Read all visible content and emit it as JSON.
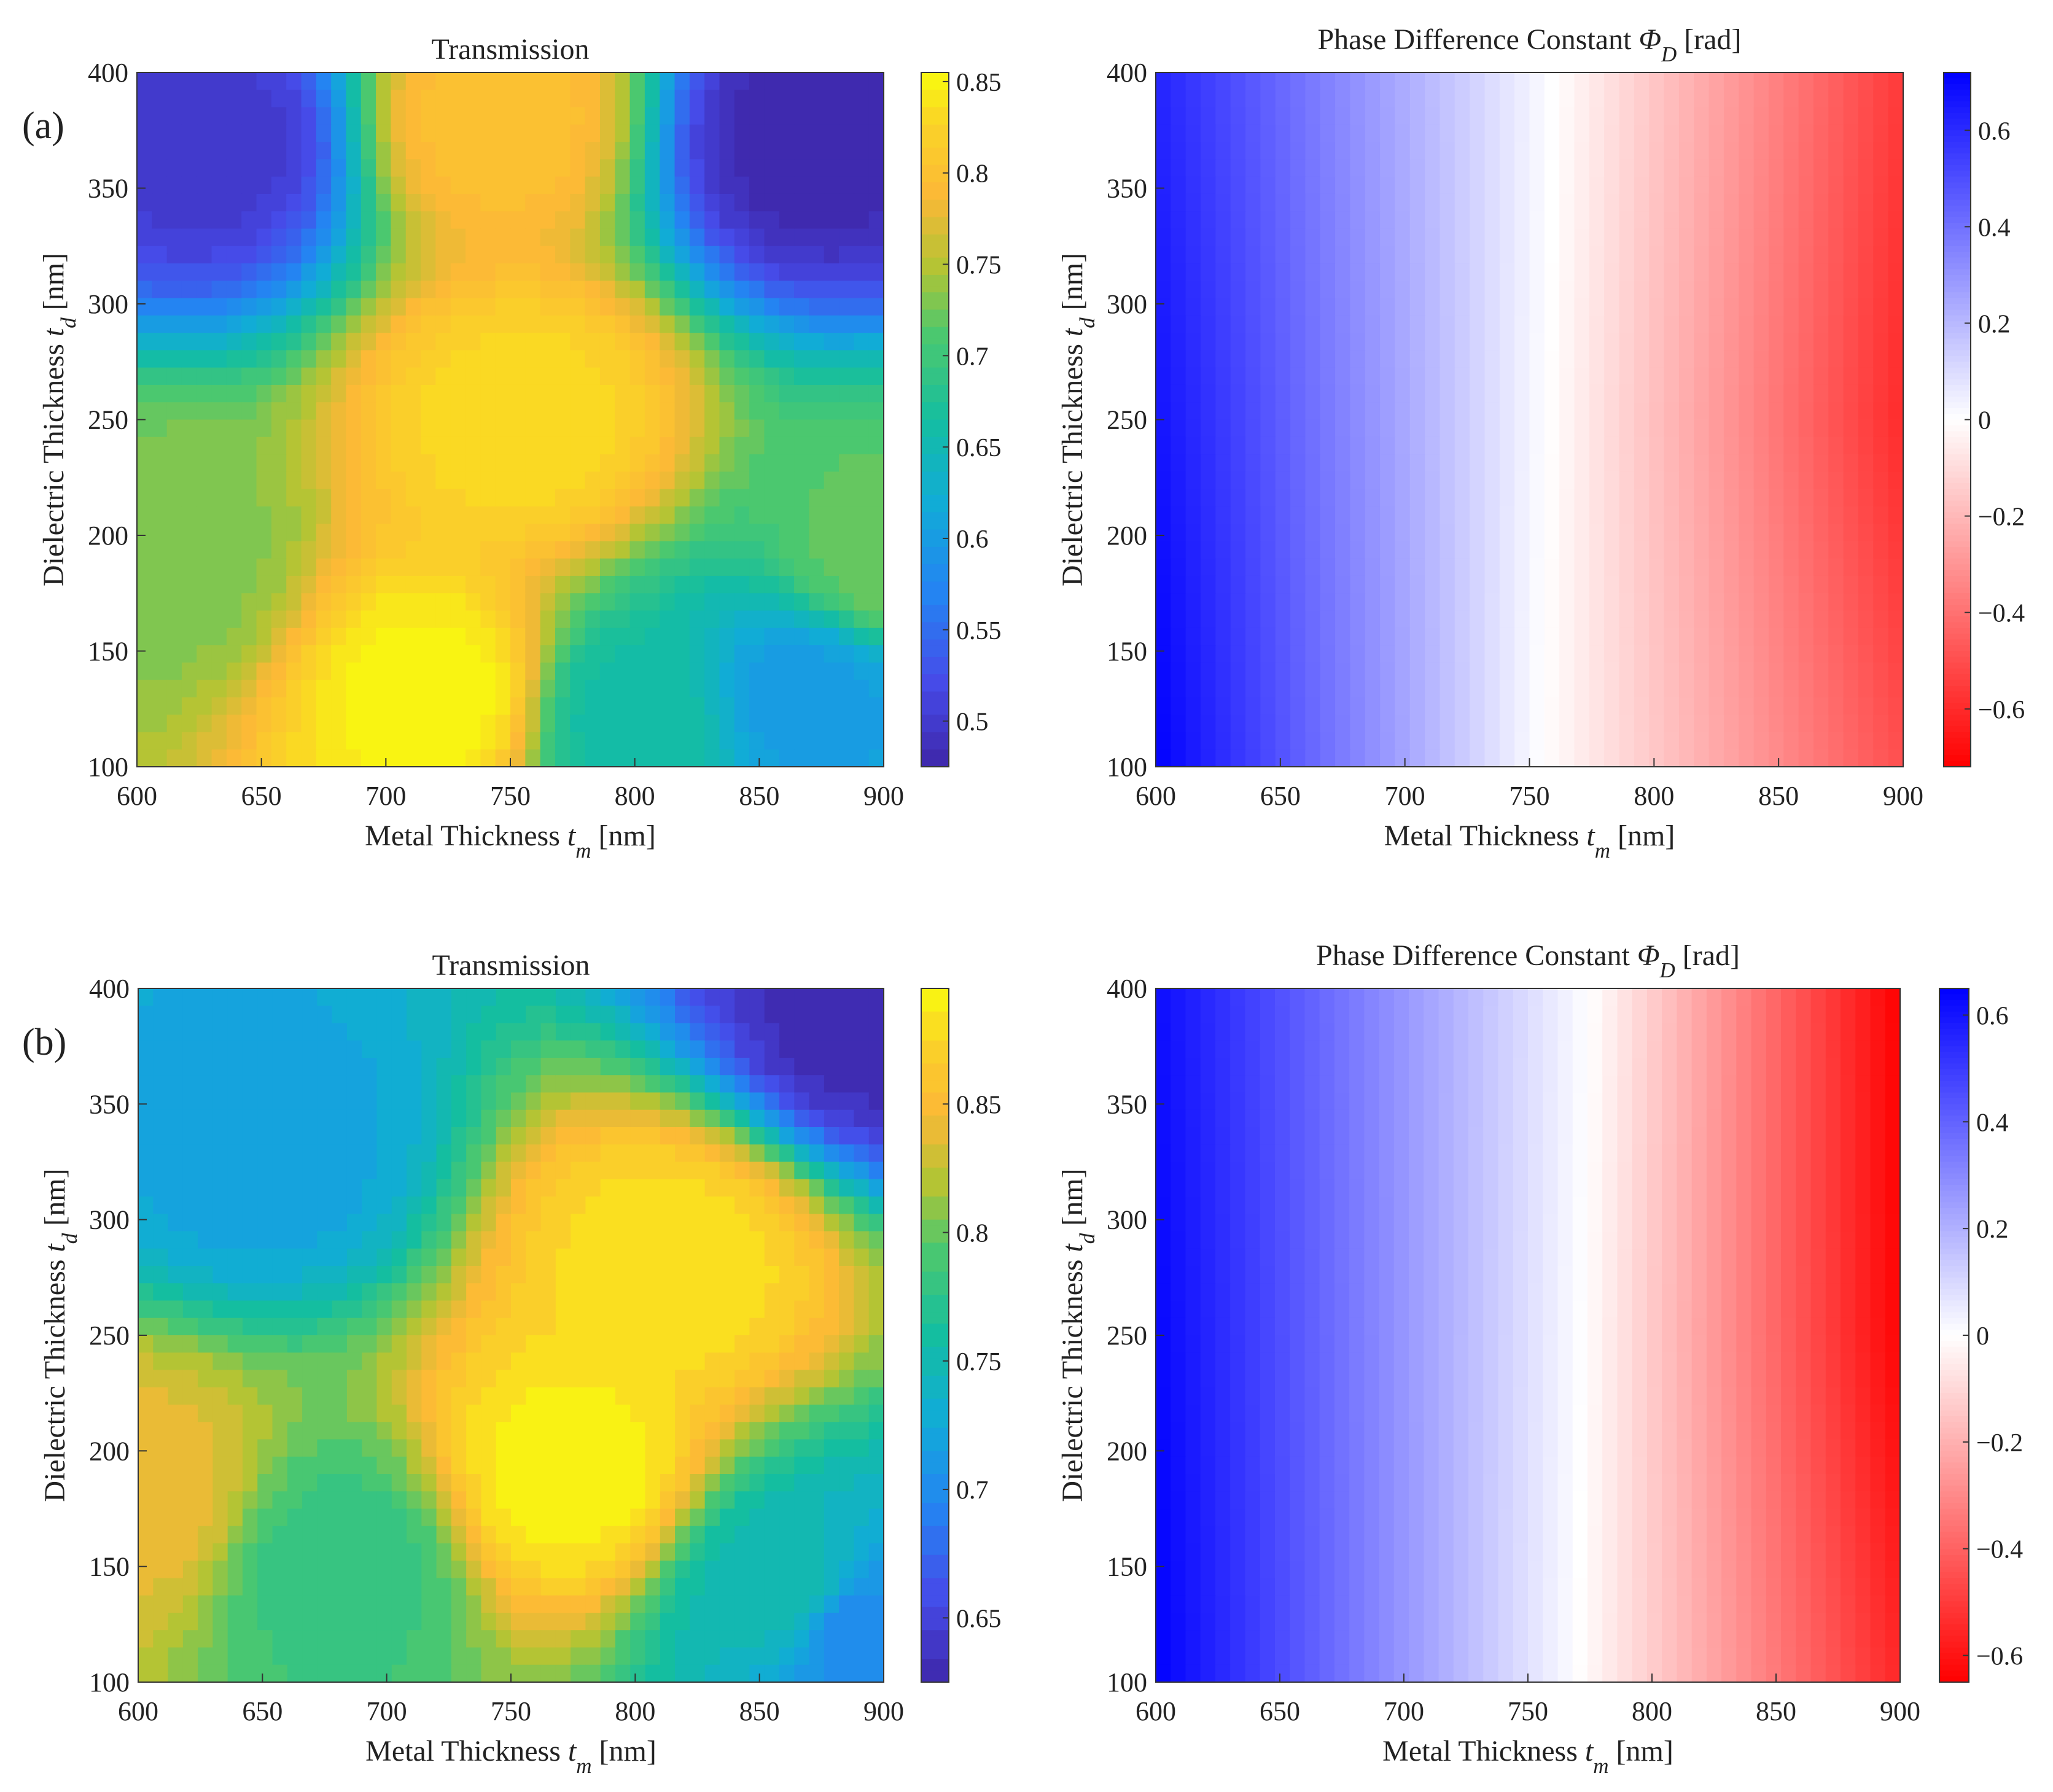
{
  "panel_labels": [
    "(a)",
    "(b)"
  ],
  "chart_data": [
    {
      "type": "heatmap",
      "panel": "(a)",
      "title": "Transmission",
      "xlabel": {
        "main": "Metal Thickness ",
        "var": "t",
        "sub": "m",
        "unit": " [nm]"
      },
      "ylabel": {
        "main": "Dielectric Thickness ",
        "var": "t",
        "sub": "d",
        "unit": " [nm]"
      },
      "xlim": [
        600,
        900
      ],
      "ylim": [
        100,
        400
      ],
      "xticks": [
        "600",
        "650",
        "700",
        "750",
        "800",
        "850",
        "900"
      ],
      "yticks": [
        "100",
        "150",
        "200",
        "250",
        "300",
        "350",
        "400"
      ],
      "colormap": "parula",
      "clim": [
        0.475,
        0.855
      ],
      "cbar_ticks": [
        "0.5",
        "0.55",
        "0.6",
        "0.65",
        "0.7",
        "0.75",
        "0.8",
        "0.85"
      ],
      "cbar_values": [
        0.5,
        0.55,
        0.6,
        0.65,
        0.7,
        0.75,
        0.8,
        0.85
      ],
      "features": [
        {
          "x": 720,
          "y": 130,
          "v": 0.85
        },
        {
          "x": 755,
          "y": 250,
          "v": 0.83
        },
        {
          "x": 745,
          "y": 380,
          "v": 0.8
        },
        {
          "x": 630,
          "y": 370,
          "v": 0.5
        },
        {
          "x": 870,
          "y": 370,
          "v": 0.48
        },
        {
          "x": 610,
          "y": 190,
          "v": 0.73
        },
        {
          "x": 800,
          "y": 120,
          "v": 0.66
        },
        {
          "x": 870,
          "y": 130,
          "v": 0.6
        },
        {
          "x": 900,
          "y": 190,
          "v": 0.72
        }
      ]
    },
    {
      "type": "heatmap",
      "panel": "(a)",
      "title": {
        "main": "Phase Difference Constant ",
        "var": "Φ",
        "sub": "D",
        "unit": " [rad]"
      },
      "xlabel": {
        "main": "Metal Thickness ",
        "var": "t",
        "sub": "m",
        "unit": " [nm]"
      },
      "ylabel": {
        "main": "Dielectric Thickness ",
        "var": "t",
        "sub": "d",
        "unit": " [nm]"
      },
      "xlim": [
        600,
        900
      ],
      "ylim": [
        100,
        400
      ],
      "xticks": [
        "600",
        "650",
        "700",
        "750",
        "800",
        "850",
        "900"
      ],
      "yticks": [
        "100",
        "150",
        "200",
        "250",
        "300",
        "350",
        "400"
      ],
      "colormap": "blue-white-red",
      "clim": [
        -0.72,
        0.72
      ],
      "cbar_ticks": [
        "0.6",
        "0.4",
        "0.2",
        "0",
        "−0.2",
        "−0.4",
        "−0.6"
      ],
      "cbar_values": [
        0.6,
        0.4,
        0.2,
        0,
        -0.2,
        -0.4,
        -0.6
      ],
      "zero_contour_x": [
        755,
        760
      ],
      "corner_values": {
        "x600_y100": 0.72,
        "x600_y400": 0.62,
        "x900_y100": -0.5,
        "x900_y250": -0.6,
        "x900_y400": -0.56
      }
    },
    {
      "type": "heatmap",
      "panel": "(b)",
      "title": "Transmission",
      "xlabel": {
        "main": "Metal Thickness ",
        "var": "t",
        "sub": "m",
        "unit": " [nm]"
      },
      "ylabel": {
        "main": "Dielectric Thickness ",
        "var": "t",
        "sub": "d",
        "unit": " [nm]"
      },
      "xlim": [
        600,
        900
      ],
      "ylim": [
        100,
        400
      ],
      "xticks": [
        "600",
        "650",
        "700",
        "750",
        "800",
        "850",
        "900"
      ],
      "yticks": [
        "100",
        "150",
        "200",
        "250",
        "300",
        "350",
        "400"
      ],
      "colormap": "parula",
      "clim": [
        0.625,
        0.895
      ],
      "cbar_ticks": [
        "0.65",
        "0.7",
        "0.75",
        "0.8",
        "0.85"
      ],
      "cbar_values": [
        0.65,
        0.7,
        0.75,
        0.8,
        0.85
      ],
      "features": [
        {
          "x": 775,
          "y": 190,
          "v": 0.89
        },
        {
          "x": 815,
          "y": 280,
          "v": 0.88
        },
        {
          "x": 600,
          "y": 180,
          "v": 0.84
        },
        {
          "x": 650,
          "y": 330,
          "v": 0.72
        },
        {
          "x": 895,
          "y": 390,
          "v": 0.63
        },
        {
          "x": 890,
          "y": 120,
          "v": 0.7
        },
        {
          "x": 860,
          "y": 140,
          "v": 0.75
        },
        {
          "x": 680,
          "y": 150,
          "v": 0.78
        }
      ]
    },
    {
      "type": "heatmap",
      "panel": "(b)",
      "title": {
        "main": "Phase Difference Constant ",
        "var": "Φ",
        "sub": "D",
        "unit": " [rad]"
      },
      "xlabel": {
        "main": "Metal Thickness ",
        "var": "t",
        "sub": "m",
        "unit": " [nm]"
      },
      "ylabel": {
        "main": "Dielectric Thickness ",
        "var": "t",
        "sub": "d",
        "unit": " [nm]"
      },
      "xlim": [
        600,
        900
      ],
      "ylim": [
        100,
        400
      ],
      "xticks": [
        "600",
        "650",
        "700",
        "750",
        "800",
        "850",
        "900"
      ],
      "yticks": [
        "100",
        "150",
        "200",
        "250",
        "300",
        "350",
        "400"
      ],
      "colormap": "blue-white-red",
      "clim": [
        -0.65,
        0.65
      ],
      "cbar_ticks": [
        "0.6",
        "0.4",
        "0.2",
        "0",
        "−0.2",
        "−0.4",
        "−0.6"
      ],
      "cbar_values": [
        0.6,
        0.4,
        0.2,
        0,
        -0.2,
        -0.4,
        -0.6
      ],
      "zero_contour_x": [
        770,
        775
      ],
      "corner_values": {
        "x600_y100": 0.65,
        "x600_y400": 0.62,
        "x900_y100": -0.55,
        "x900_y250": -0.64,
        "x900_y400": -0.65
      }
    }
  ]
}
